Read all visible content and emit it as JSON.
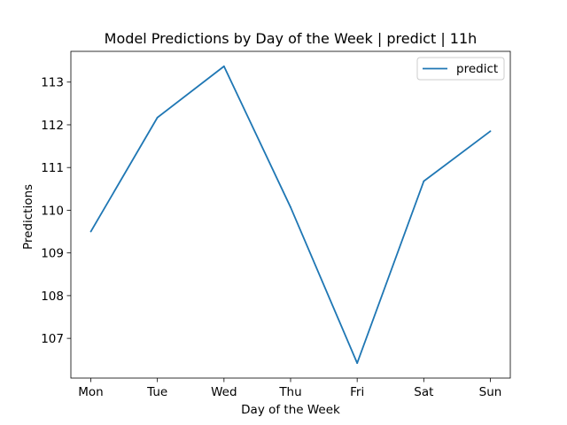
{
  "chart_data": {
    "type": "line",
    "title": "Model Predictions by Day of the Week | predict | 11h",
    "xlabel": "Day of the Week",
    "ylabel": "Predictions",
    "categories": [
      "Mon",
      "Tue",
      "Wed",
      "Thu",
      "Fri",
      "Sat",
      "Sun"
    ],
    "series": [
      {
        "name": "predict",
        "values": [
          109.5,
          112.17,
          113.37,
          110.07,
          106.42,
          110.68,
          111.85
        ],
        "color": "#1f77b4"
      }
    ],
    "yticks": [
      "107",
      "108",
      "109",
      "110",
      "111",
      "112",
      "113"
    ],
    "ylim": [
      106.07,
      113.72
    ],
    "grid": false,
    "legend_position": "top-right"
  }
}
